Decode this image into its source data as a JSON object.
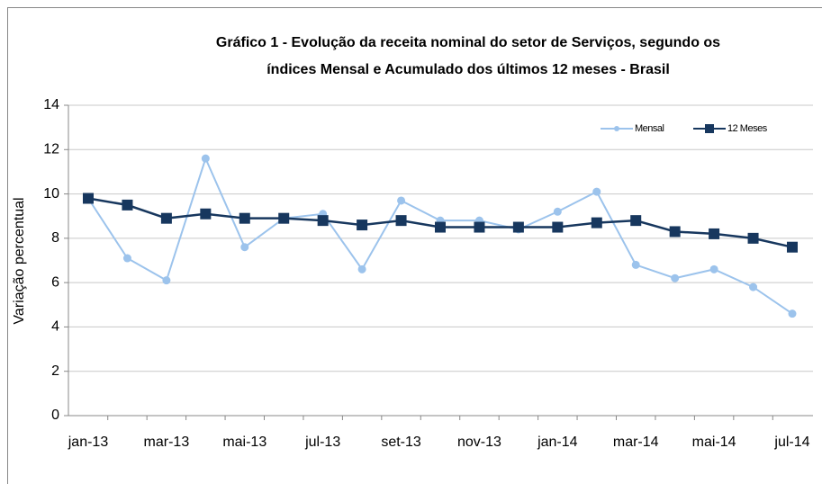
{
  "chart_data": {
    "type": "line",
    "title": [
      "Gráfico 1 - Evolução da receita nominal do setor de Serviços, segundo os",
      "índices Mensal e Acumulado dos últimos 12 meses - Brasil"
    ],
    "y_label": "Variação percentual",
    "categories": [
      "jan-13",
      null,
      "mar-13",
      null,
      "mai-13",
      null,
      "jul-13",
      null,
      "set-13",
      null,
      "nov-13",
      null,
      "jan-14",
      null,
      "mar-14",
      null,
      "mai-14",
      null,
      "jul-14"
    ],
    "series": [
      {
        "name": "Mensal",
        "color": "#9cc3ec",
        "marker": "circle",
        "values": [
          9.8,
          7.1,
          6.1,
          11.6,
          7.6,
          8.9,
          9.1,
          6.6,
          9.7,
          8.8,
          8.8,
          8.4,
          9.2,
          10.1,
          6.8,
          6.2,
          6.6,
          5.8,
          4.6
        ]
      },
      {
        "name": "12 Meses",
        "color": "#17375e",
        "marker": "square",
        "values": [
          9.8,
          9.5,
          8.9,
          9.1,
          8.9,
          8.9,
          8.8,
          8.6,
          8.8,
          8.5,
          8.5,
          8.5,
          8.5,
          8.7,
          8.8,
          8.3,
          8.2,
          8.0,
          7.6
        ]
      }
    ],
    "ylim": [
      0,
      14
    ],
    "yticks": [
      0,
      2,
      4,
      6,
      8,
      10,
      12,
      14
    ],
    "grid": true,
    "legend": "top-right"
  }
}
